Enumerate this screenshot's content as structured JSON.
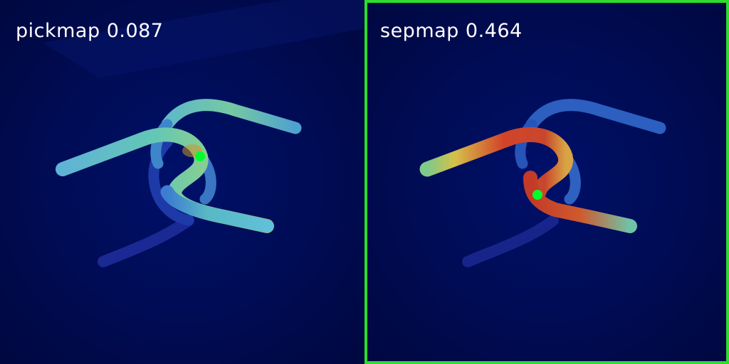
{
  "panels": [
    {
      "name": "pickmap",
      "label": "pickmap 0.087",
      "score": 0.087,
      "selected": false
    },
    {
      "name": "sepmap",
      "label": "sepmap 0.464",
      "score": 0.464,
      "selected": true
    }
  ],
  "colors": {
    "background": "#000a4a",
    "selection_border": "#2ddc2d",
    "marker": "#00ff2a",
    "label_text": "#ffffff"
  }
}
